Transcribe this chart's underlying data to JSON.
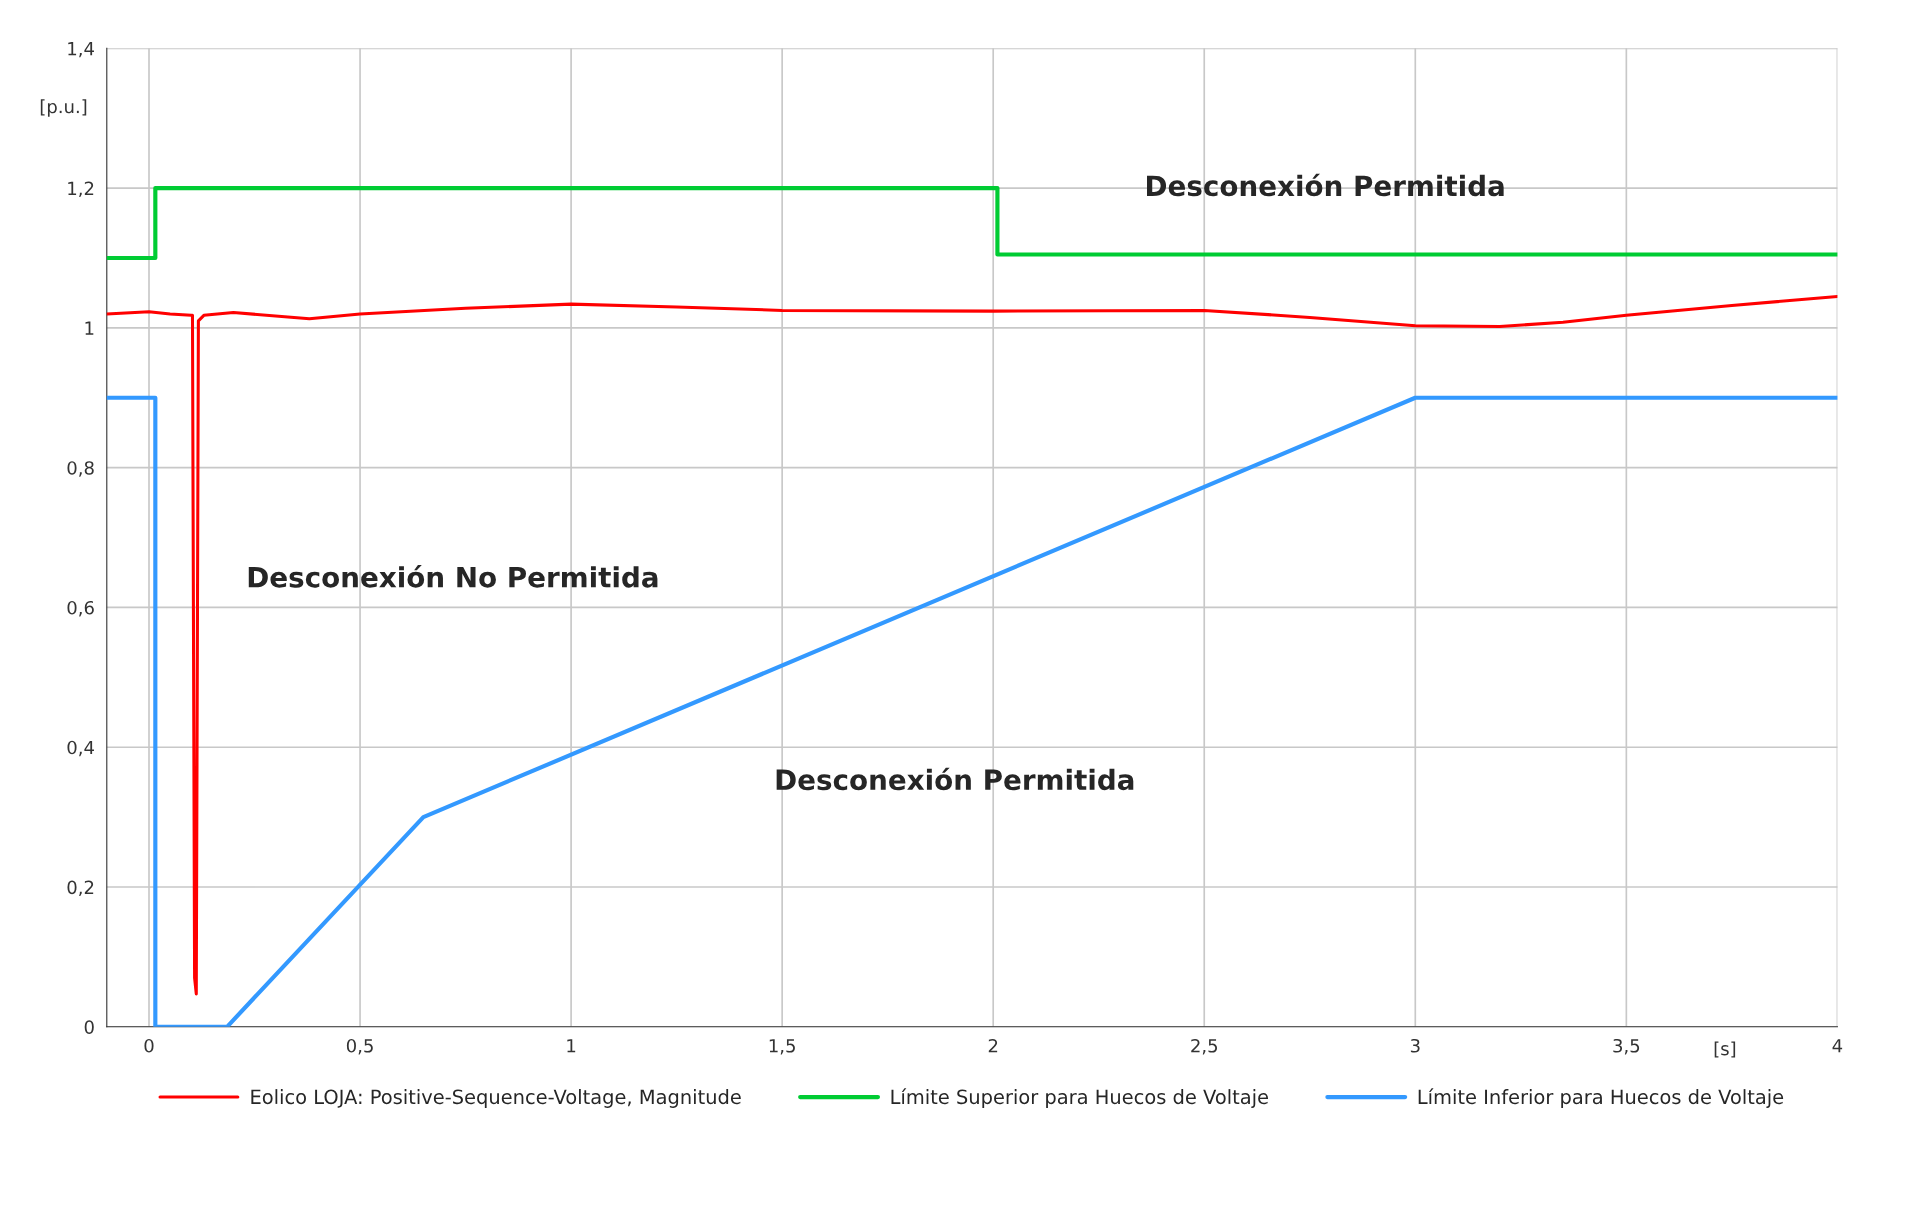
{
  "chart_data": {
    "type": "line",
    "xlabel": "[s]",
    "ylabel": "[p.u.]",
    "xlim": [
      -0.1,
      4
    ],
    "ylim": [
      0,
      1.4
    ],
    "xticks": [
      0,
      {
        "value": 0.5,
        "label": "0,5"
      },
      1,
      {
        "value": 1.5,
        "label": "1,5"
      },
      2,
      {
        "value": 2.5,
        "label": "2,5"
      },
      3,
      {
        "value": 3.5,
        "label": "3,5"
      },
      4
    ],
    "yticks": [
      0,
      {
        "value": 0.2,
        "label": "0,2"
      },
      {
        "value": 0.4,
        "label": "0,4"
      },
      {
        "value": 0.6,
        "label": "0,6"
      },
      {
        "value": 0.8,
        "label": "0,8"
      },
      1,
      {
        "value": 1.2,
        "label": "1,2"
      },
      {
        "value": 1.4,
        "label": "1,4"
      }
    ],
    "grid": true,
    "legend": "bottom",
    "marker": "none",
    "line_style": "solid",
    "series": [
      {
        "name": "Eolico LOJA: Positive-Sequence-Voltage, Magnitude",
        "color": "#ff0000",
        "x": [
          -0.1,
          0.0,
          0.05,
          0.1,
          0.103,
          0.108,
          0.112,
          0.117,
          0.13,
          0.2,
          0.38,
          0.5,
          0.75,
          1.0,
          1.25,
          1.5,
          2.0,
          2.5,
          2.75,
          3.0,
          3.2,
          3.35,
          3.5,
          3.75,
          4.0
        ],
        "values": [
          1.02,
          1.023,
          1.02,
          1.018,
          1.018,
          0.07,
          0.047,
          1.01,
          1.018,
          1.022,
          1.013,
          1.02,
          1.028,
          1.034,
          1.03,
          1.025,
          1.024,
          1.025,
          1.015,
          1.003,
          1.002,
          1.008,
          1.018,
          1.032,
          1.045
        ]
      },
      {
        "name": "Límite Superior para Huecos de Voltaje",
        "color": "#00cc33",
        "x": [
          -0.1,
          0.015,
          0.015,
          2.01,
          2.01,
          4.0
        ],
        "values": [
          1.1,
          1.1,
          1.2,
          1.2,
          1.105,
          1.105
        ]
      },
      {
        "name": "Límite Inferior para Huecos de Voltaje",
        "color": "#3399ff",
        "x": [
          -0.1,
          0.015,
          0.015,
          0.185,
          0.65,
          3.0,
          4.0
        ],
        "values": [
          0.9,
          0.9,
          0.0,
          0.0,
          0.3,
          0.9,
          0.9
        ]
      }
    ],
    "annotations": [
      "Desconexión Permitida",
      "Desconexión No Permitida",
      "Desconexión Permitida"
    ]
  }
}
